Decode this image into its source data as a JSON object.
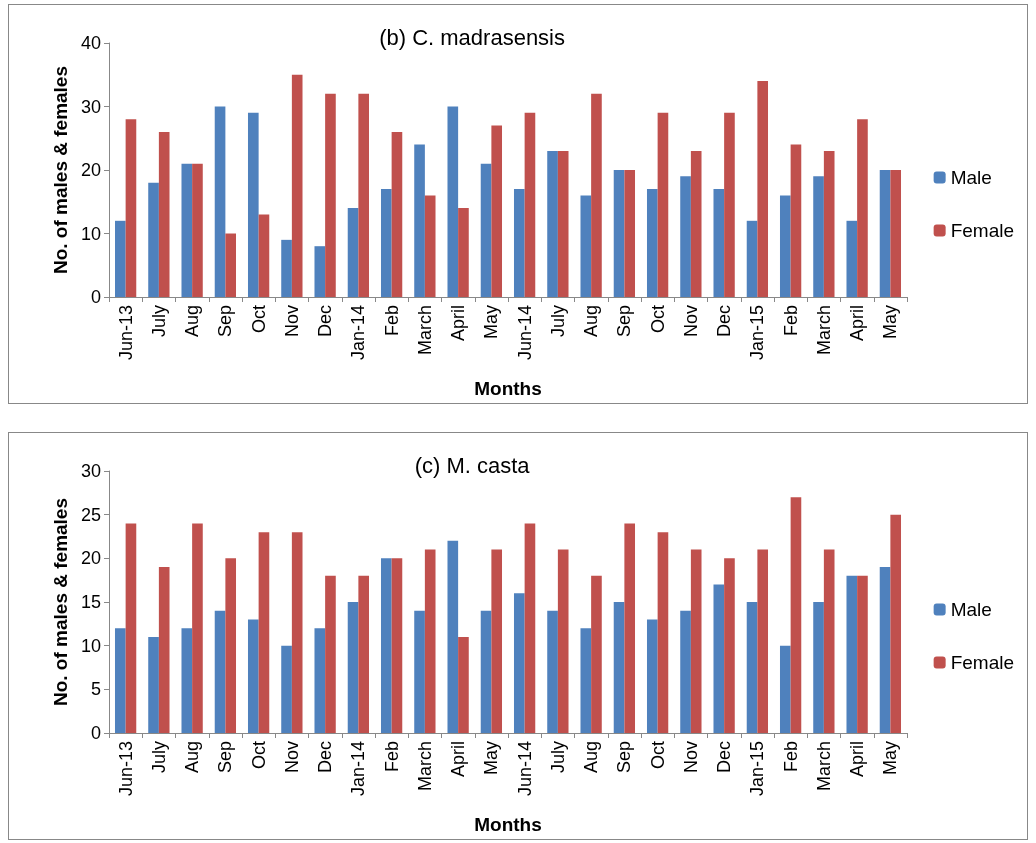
{
  "chart_data": [
    {
      "type": "bar",
      "title": "(b) C. madrasensis",
      "xlabel": "Months",
      "ylabel": "No. of males & females",
      "categories": [
        "Jun-13",
        "July",
        "Aug",
        "Sep",
        "Oct",
        "Nov",
        "Dec",
        "Jan-14",
        "Feb",
        "March",
        "April",
        "May",
        "Jun-14",
        "July",
        "Aug",
        "Sep",
        "Oct",
        "Nov",
        "Dec",
        "Jan-15",
        "Feb",
        "March",
        "April",
        "May"
      ],
      "series": [
        {
          "name": "Male",
          "color": "#4f81bd",
          "values": [
            12,
            18,
            21,
            30,
            29,
            9,
            8,
            14,
            17,
            24,
            30,
            21,
            17,
            23,
            16,
            20,
            17,
            19,
            17,
            12,
            16,
            19,
            12,
            20
          ]
        },
        {
          "name": "Female",
          "color": "#c0504d",
          "values": [
            28,
            26,
            21,
            10,
            13,
            35,
            32,
            32,
            26,
            16,
            14,
            27,
            29,
            23,
            32,
            20,
            29,
            23,
            29,
            34,
            24,
            23,
            28,
            20
          ]
        }
      ],
      "ylim": [
        0,
        40
      ],
      "yticks": [
        0,
        10,
        20,
        30,
        40
      ],
      "grid": false,
      "legend": "right"
    },
    {
      "type": "bar",
      "title": "(c) M. casta",
      "xlabel": "Months",
      "ylabel": "No. of males & females",
      "categories": [
        "Jun-13",
        "July",
        "Aug",
        "Sep",
        "Oct",
        "Nov",
        "Dec",
        "Jan-14",
        "Feb",
        "March",
        "April",
        "May",
        "Jun-14",
        "July",
        "Aug",
        "Sep",
        "Oct",
        "Nov",
        "Dec",
        "Jan-15",
        "Feb",
        "March",
        "April",
        "May"
      ],
      "series": [
        {
          "name": "Male",
          "color": "#4f81bd",
          "values": [
            12,
            11,
            12,
            14,
            13,
            10,
            12,
            15,
            20,
            14,
            22,
            14,
            16,
            14,
            12,
            15,
            13,
            14,
            17,
            15,
            10,
            15,
            18,
            19
          ]
        },
        {
          "name": "Female",
          "color": "#c0504d",
          "values": [
            24,
            19,
            24,
            20,
            23,
            23,
            18,
            18,
            20,
            21,
            11,
            21,
            24,
            21,
            18,
            24,
            23,
            21,
            20,
            21,
            27,
            21,
            18,
            25
          ]
        }
      ],
      "ylim": [
        0,
        30
      ],
      "yticks": [
        0,
        5,
        10,
        15,
        20,
        25,
        30
      ],
      "grid": false,
      "legend": "right"
    }
  ]
}
